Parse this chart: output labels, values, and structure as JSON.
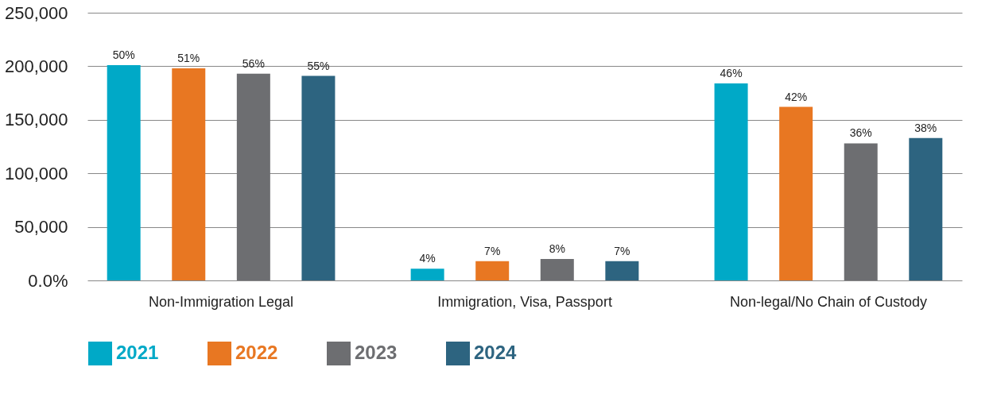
{
  "chart_data": {
    "type": "bar",
    "categories": [
      "Non-Immigration Legal",
      "Immigration, Visa, Passport",
      "Non-legal/No Chain of Custody"
    ],
    "series": [
      {
        "name": "2021",
        "color": "#00a9c7",
        "values": [
          201000,
          11000,
          184000
        ]
      },
      {
        "name": "2022",
        "color": "#e87722",
        "values": [
          198000,
          18000,
          162000
        ]
      },
      {
        "name": "2023",
        "color": "#6d6e71",
        "values": [
          193000,
          20000,
          128000
        ]
      },
      {
        "name": "2024",
        "color": "#2d6480",
        "values": [
          191000,
          18000,
          133000
        ]
      }
    ],
    "annotations": [
      "50%",
      "51%",
      "56%",
      "55%",
      "4%",
      "7%",
      "8%",
      "7%",
      "46%",
      "42%",
      "36%",
      "38%"
    ],
    "ylim": [
      0,
      250000
    ],
    "yticks": [
      {
        "value": 0,
        "label": "0.0%"
      },
      {
        "value": 50000,
        "label": "50,000"
      },
      {
        "value": 100000,
        "label": "100,000"
      },
      {
        "value": 150000,
        "label": "150,000"
      },
      {
        "value": 200000,
        "label": "200,000"
      },
      {
        "value": 250000,
        "label": "250,000"
      }
    ],
    "grid": "y",
    "legend": "bottom"
  }
}
